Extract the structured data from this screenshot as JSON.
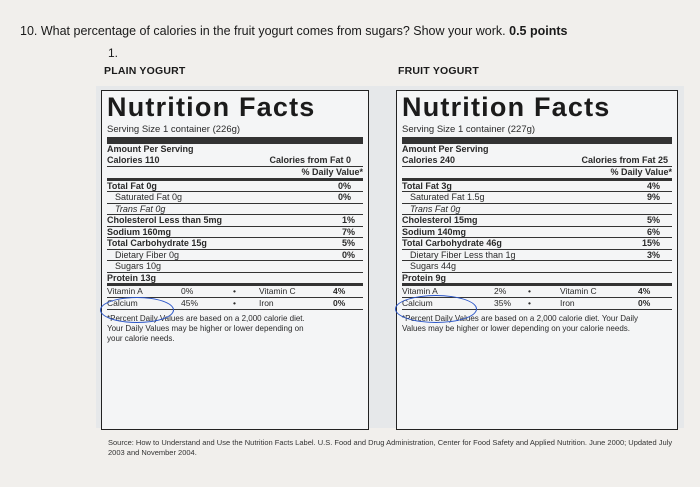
{
  "question": {
    "text": "10. What percentage of calories in the fruit yogurt comes from sugars? Show your work.",
    "points": "0.5 points",
    "number": "1."
  },
  "plain": {
    "heading": "PLAIN YOGURT",
    "title": "Nutrition Facts",
    "serving": "Serving Size 1 container (226g)",
    "amount": "Amount Per Serving",
    "calories": "Calories 110",
    "cal_fat": "Calories from Fat 0",
    "dv_header": "% Daily Value*",
    "rows": [
      {
        "label": "Total Fat 0g",
        "dv": "0%"
      },
      {
        "label": "Saturated Fat 0g",
        "dv": "0%"
      },
      {
        "label": "Trans Fat 0g",
        "dv": ""
      },
      {
        "label": "Cholesterol Less than 5mg",
        "dv": "1%"
      },
      {
        "label": "Sodium 160mg",
        "dv": "7%"
      },
      {
        "label": "Total Carbohydrate 15g",
        "dv": "5%"
      },
      {
        "label": "Dietary Fiber 0g",
        "dv": "0%"
      },
      {
        "label": "Sugars 10g",
        "dv": ""
      },
      {
        "label": "Protein 13g",
        "dv": ""
      }
    ],
    "vit_a_label": "Vitamin A",
    "vit_a": "0%",
    "vit_c_label": "Vitamin C",
    "vit_c": "4%",
    "calcium_label": "Calcium",
    "calcium": "45%",
    "iron_label": "Iron",
    "iron": "0%",
    "footnote": "*Percent Daily Values are based on a 2,000 calorie diet. Your Daily Values may be higher or lower depending on your calorie needs."
  },
  "fruit": {
    "heading": "FRUIT YOGURT",
    "title": "Nutrition Facts",
    "serving": "Serving Size 1 container (227g)",
    "amount": "Amount Per Serving",
    "calories": "Calories 240",
    "cal_fat": "Calories from Fat 25",
    "dv_header": "% Daily Value*",
    "rows": [
      {
        "label": "Total Fat 3g",
        "dv": "4%"
      },
      {
        "label": "Saturated Fat 1.5g",
        "dv": "9%"
      },
      {
        "label": "Trans Fat 0g",
        "dv": ""
      },
      {
        "label": "Cholesterol 15mg",
        "dv": "5%"
      },
      {
        "label": "Sodium 140mg",
        "dv": "6%"
      },
      {
        "label": "Total Carbohydrate 46g",
        "dv": "15%"
      },
      {
        "label": "Dietary Fiber Less than 1g",
        "dv": "3%"
      },
      {
        "label": "Sugars 44g",
        "dv": ""
      },
      {
        "label": "Protein 9g",
        "dv": ""
      }
    ],
    "vit_a_label": "Vitamin A",
    "vit_a": "2%",
    "vit_c_label": "Vitamin C",
    "vit_c": "4%",
    "calcium_label": "Calcium",
    "calcium": "35%",
    "iron_label": "Iron",
    "iron": "0%",
    "footnote": "*Percent Daily Values are based on a 2,000 calorie diet. Your Daily Values may be higher or lower depending on your calorie needs."
  },
  "source": "Source: How to Understand and Use the Nutrition Facts Label. U.S. Food and Drug Administration, Center for Food Safety and Applied Nutrition. June 2000; Updated July 2003 and November 2004.",
  "colors": {
    "annotation_oval": "#2a55c8",
    "panel": "#e6e8ea",
    "background": "#f1efec"
  }
}
